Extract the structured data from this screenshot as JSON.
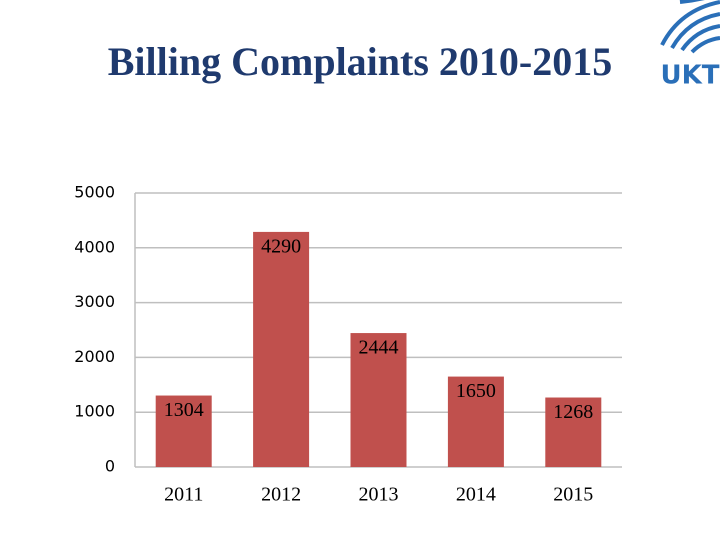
{
  "logo": {
    "text": "UKT"
  },
  "chart_data": {
    "type": "bar",
    "title": "Billing Complaints 2010-2015",
    "categories": [
      "2011",
      "2012",
      "2013",
      "2014",
      "2015"
    ],
    "values": [
      1304,
      4290,
      2444,
      1650,
      1268
    ],
    "color": "#c0504d",
    "ylim": [
      0,
      5000
    ],
    "yticks": [
      0,
      1000,
      2000,
      3000,
      4000,
      5000
    ],
    "grid": true
  }
}
